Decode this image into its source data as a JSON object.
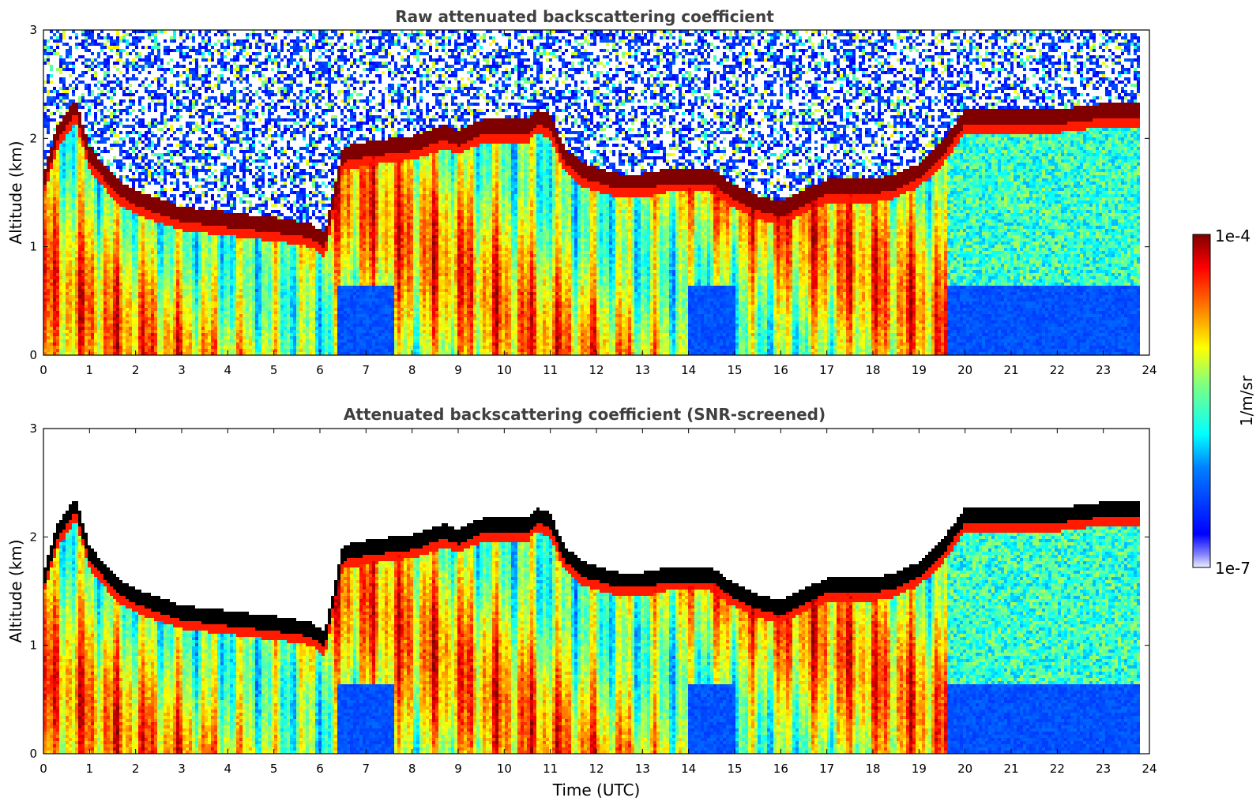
{
  "chart_data": [
    {
      "type": "heatmap",
      "title": "Raw attenuated backscattering coefficient",
      "xlabel": "",
      "ylabel": "Altitude (km)",
      "xlim": [
        0,
        24
      ],
      "ylim": [
        0,
        3
      ],
      "xticks": [
        "0",
        "1",
        "2",
        "3",
        "4",
        "5",
        "6",
        "7",
        "8",
        "9",
        "10",
        "11",
        "12",
        "13",
        "14",
        "15",
        "16",
        "17",
        "18",
        "19",
        "20",
        "21",
        "22",
        "23",
        "24"
      ],
      "yticks": [
        "0",
        "1",
        "2",
        "3"
      ],
      "screened": false,
      "layer_top_km": [
        [
          0.0,
          1.6
        ],
        [
          0.3,
          2.05
        ],
        [
          0.7,
          2.3
        ],
        [
          1.0,
          1.85
        ],
        [
          1.6,
          1.55
        ],
        [
          2.0,
          1.45
        ],
        [
          3.0,
          1.3
        ],
        [
          4.0,
          1.25
        ],
        [
          5.0,
          1.2
        ],
        [
          5.8,
          1.15
        ],
        [
          6.1,
          1.05
        ],
        [
          6.5,
          1.85
        ],
        [
          7.0,
          1.9
        ],
        [
          8.0,
          1.95
        ],
        [
          8.7,
          2.05
        ],
        [
          9.0,
          2.0
        ],
        [
          9.5,
          2.1
        ],
        [
          10.0,
          2.1
        ],
        [
          10.5,
          2.1
        ],
        [
          10.7,
          2.2
        ],
        [
          11.0,
          2.15
        ],
        [
          11.3,
          1.85
        ],
        [
          11.7,
          1.7
        ],
        [
          12.1,
          1.65
        ],
        [
          12.5,
          1.6
        ],
        [
          13.0,
          1.6
        ],
        [
          13.5,
          1.65
        ],
        [
          14.0,
          1.65
        ],
        [
          14.5,
          1.65
        ],
        [
          15.0,
          1.5
        ],
        [
          15.5,
          1.4
        ],
        [
          16.0,
          1.35
        ],
        [
          16.5,
          1.45
        ],
        [
          17.0,
          1.55
        ],
        [
          17.5,
          1.55
        ],
        [
          18.0,
          1.55
        ],
        [
          18.5,
          1.6
        ],
        [
          19.0,
          1.7
        ],
        [
          19.5,
          1.9
        ],
        [
          20.0,
          2.2
        ],
        [
          20.5,
          2.2
        ],
        [
          21.0,
          2.2
        ],
        [
          22.0,
          2.2
        ],
        [
          23.0,
          2.25
        ],
        [
          23.8,
          2.25
        ]
      ]
    },
    {
      "type": "heatmap",
      "title": "Attenuated backscattering coefficient (SNR-screened)",
      "xlabel": "Time (UTC)",
      "ylabel": "Altitude (km)",
      "xlim": [
        0,
        24
      ],
      "ylim": [
        0,
        3
      ],
      "xticks": [
        "0",
        "1",
        "2",
        "3",
        "4",
        "5",
        "6",
        "7",
        "8",
        "9",
        "10",
        "11",
        "12",
        "13",
        "14",
        "15",
        "16",
        "17",
        "18",
        "19",
        "20",
        "21",
        "22",
        "23",
        "24"
      ],
      "yticks": [
        "0",
        "1",
        "2",
        "3"
      ],
      "screened": true
    }
  ],
  "colorbar": {
    "label": "1/m/sr",
    "max_label": "1e-4",
    "min_label": "1e-7",
    "scale": "log",
    "colormap": "jet"
  },
  "colors": {
    "title": "#404040",
    "saturated": "#000000",
    "background": "#ffffff"
  }
}
